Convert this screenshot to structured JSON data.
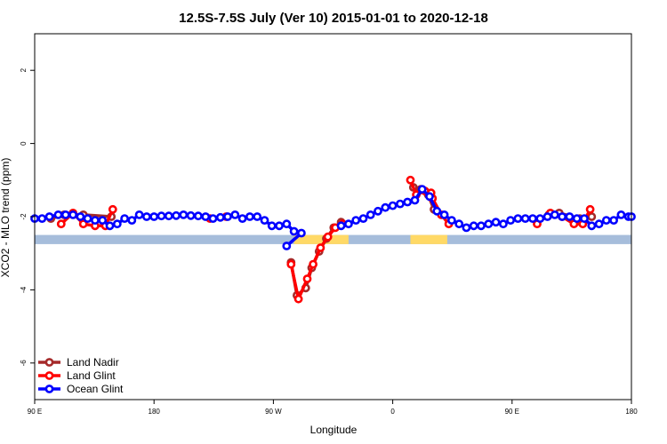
{
  "chart_data": {
    "type": "line",
    "title": "12.5S-7.5S July (Ver 10)   2015-01-01 to 2020-12-18",
    "xlabel": "Longitude",
    "ylabel": "XCO2 - MLO trend (ppm)",
    "xlim": [
      0,
      405
    ],
    "ylim": [
      -7,
      3
    ],
    "x_ticks": [
      {
        "value": 0,
        "label": "90 E"
      },
      {
        "value": 81,
        "label": "180"
      },
      {
        "value": 162,
        "label": "90 W"
      },
      {
        "value": 243,
        "label": "0"
      },
      {
        "value": 324,
        "label": "90 E"
      },
      {
        "value": 405,
        "label": "180"
      }
    ],
    "y_ticks": [
      {
        "value": 2,
        "label": "2"
      },
      {
        "value": 0,
        "label": "0"
      },
      {
        "value": -2,
        "label": "-2"
      },
      {
        "value": -4,
        "label": "-4"
      },
      {
        "value": -6,
        "label": "-6"
      }
    ],
    "legend": {
      "placement": "bottom-left",
      "entries": [
        {
          "name": "Land Nadir",
          "color": "#A52A2A"
        },
        {
          "name": "Land Glint",
          "color": "#FF0000"
        },
        {
          "name": "Ocean Glint",
          "color": "#0000FF"
        }
      ]
    },
    "surface_band": {
      "y_range": [
        -2.75,
        -2.5
      ],
      "ocean_color": "#A6BDDB",
      "land_color": "#FFD966",
      "land_x_ranges": [
        [
          176,
          213
        ],
        [
          255,
          280
        ]
      ]
    },
    "series": [
      {
        "name": "Land Nadir",
        "color": "#A52A2A",
        "segments": [
          [
            [
              11,
              -2.05
            ],
            [
              20,
              -1.95
            ],
            [
              33,
              -1.95
            ],
            [
              52,
              -2.0
            ]
          ],
          [
            [
              349,
              -1.95
            ],
            [
              356,
              -1.9
            ],
            [
              370,
              -2.05
            ],
            [
              378,
              -2.0
            ]
          ],
          [
            [
              174,
              -3.25
            ],
            [
              178,
              -4.15
            ],
            [
              184,
              -3.95
            ],
            [
              188,
              -3.4
            ],
            [
              193,
              -2.95
            ],
            [
              198,
              -2.6
            ],
            [
              203,
              -2.3
            ],
            [
              208,
              -2.15
            ]
          ],
          [
            [
              257,
              -1.2
            ],
            [
              262,
              -1.25
            ],
            [
              267,
              -1.4
            ],
            [
              271,
              -1.8
            ]
          ]
        ]
      },
      {
        "name": "Land Glint",
        "color": "#FF0000",
        "segments": [
          [
            [
              18,
              -2.2
            ],
            [
              26,
              -1.9
            ],
            [
              33,
              -2.2
            ],
            [
              41,
              -2.25
            ],
            [
              48,
              -2.25
            ],
            [
              53,
              -1.8
            ]
          ],
          [
            [
              119,
              -2.05
            ],
            [
              130,
              -2.0
            ]
          ],
          [
            [
              341,
              -2.2
            ],
            [
              350,
              -1.9
            ],
            [
              358,
              -2.0
            ],
            [
              366,
              -2.2
            ],
            [
              372,
              -2.2
            ],
            [
              377,
              -1.8
            ]
          ],
          [
            [
              174,
              -3.3
            ],
            [
              179,
              -4.25
            ],
            [
              185,
              -3.7
            ],
            [
              189,
              -3.3
            ],
            [
              194,
              -2.85
            ],
            [
              199,
              -2.55
            ],
            [
              204,
              -2.3
            ],
            [
              209,
              -2.2
            ]
          ],
          [
            [
              255,
              -1.0
            ],
            [
              259,
              -1.4
            ],
            [
              265,
              -1.3
            ],
            [
              269,
              -1.35
            ],
            [
              270,
              -1.5
            ],
            [
              276,
              -1.95
            ],
            [
              281,
              -2.2
            ]
          ]
        ]
      },
      {
        "name": "Ocean Glint",
        "color": "#0000FF",
        "segments": [
          [
            [
              0,
              -2.05
            ],
            [
              5,
              -2.05
            ],
            [
              10,
              -2.0
            ],
            [
              16,
              -1.95
            ],
            [
              21,
              -1.95
            ],
            [
              26,
              -1.95
            ],
            [
              31,
              -2.0
            ],
            [
              36,
              -2.05
            ],
            [
              41,
              -2.1
            ],
            [
              46,
              -2.1
            ],
            [
              51,
              -2.25
            ],
            [
              56,
              -2.2
            ],
            [
              61,
              -2.05
            ],
            [
              66,
              -2.1
            ],
            [
              71,
              -1.95
            ],
            [
              76,
              -2.0
            ],
            [
              81,
              -2.0
            ],
            [
              86,
              -1.98
            ],
            [
              91,
              -1.98
            ],
            [
              96,
              -1.97
            ],
            [
              101,
              -1.95
            ],
            [
              106,
              -1.97
            ],
            [
              111,
              -1.98
            ],
            [
              116,
              -2.0
            ],
            [
              121,
              -2.05
            ],
            [
              126,
              -2.02
            ],
            [
              131,
              -2.0
            ],
            [
              136,
              -1.95
            ],
            [
              141,
              -2.05
            ],
            [
              146,
              -2.0
            ],
            [
              151,
              -2.0
            ],
            [
              156,
              -2.1
            ],
            [
              161,
              -2.25
            ],
            [
              166,
              -2.25
            ],
            [
              171,
              -2.2
            ],
            [
              176,
              -2.4
            ],
            [
              181,
              -2.45
            ],
            [
              171,
              -2.8
            ]
          ],
          [
            [
              208,
              -2.25
            ],
            [
              213,
              -2.2
            ],
            [
              218,
              -2.1
            ],
            [
              223,
              -2.05
            ],
            [
              228,
              -1.95
            ],
            [
              233,
              -1.85
            ],
            [
              238,
              -1.75
            ],
            [
              243,
              -1.7
            ],
            [
              248,
              -1.65
            ],
            [
              253,
              -1.6
            ],
            [
              258,
              -1.55
            ],
            [
              263,
              -1.25
            ],
            [
              268,
              -1.45
            ],
            [
              273,
              -1.85
            ],
            [
              278,
              -1.95
            ],
            [
              283,
              -2.1
            ],
            [
              288,
              -2.2
            ],
            [
              293,
              -2.3
            ],
            [
              298,
              -2.25
            ],
            [
              303,
              -2.25
            ],
            [
              308,
              -2.2
            ],
            [
              313,
              -2.15
            ],
            [
              318,
              -2.2
            ],
            [
              323,
              -2.1
            ],
            [
              328,
              -2.05
            ],
            [
              333,
              -2.05
            ],
            [
              338,
              -2.05
            ],
            [
              343,
              -2.05
            ],
            [
              348,
              -2.0
            ],
            [
              353,
              -1.95
            ],
            [
              358,
              -2.0
            ],
            [
              363,
              -2.0
            ],
            [
              368,
              -2.05
            ],
            [
              373,
              -2.05
            ],
            [
              378,
              -2.25
            ],
            [
              383,
              -2.2
            ],
            [
              388,
              -2.1
            ],
            [
              393,
              -2.1
            ],
            [
              398,
              -1.95
            ],
            [
              403,
              -2.0
            ],
            [
              405,
              -2.0
            ]
          ]
        ]
      }
    ]
  }
}
